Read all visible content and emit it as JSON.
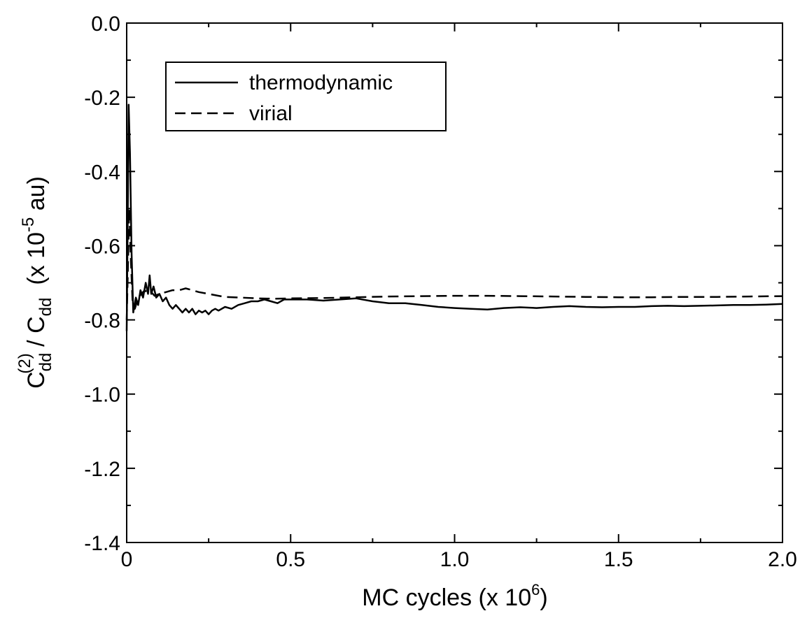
{
  "chart_data": {
    "type": "line",
    "xlabel": {
      "main": "MC cycles (x 10",
      "exponent": "6",
      "close": ")"
    },
    "ylabel": {
      "c1": "C",
      "c1_sub": "dd",
      "c1_sup": "(2)",
      "slash": " / ",
      "c2": "C",
      "c2_sub": "dd",
      "scale_open": "(x 10",
      "scale_exponent": "-5",
      "scale_close": " au)"
    },
    "xlim": [
      0,
      2.0
    ],
    "ylim": [
      -1.4,
      0.0
    ],
    "x_ticks": [
      0,
      0.5,
      1.0,
      1.5,
      2.0
    ],
    "x_tick_labels": [
      "0",
      "0.5",
      "1.0",
      "1.5",
      "2.0"
    ],
    "y_ticks": [
      0.0,
      -0.2,
      -0.4,
      -0.6,
      -0.8,
      -1.0,
      -1.2,
      -1.4
    ],
    "y_tick_labels": [
      "0.0",
      "-0.2",
      "-0.4",
      "-0.6",
      "-0.8",
      "-1.0",
      "-1.2",
      "-1.4"
    ],
    "grid": false,
    "legend": {
      "position": "top-left",
      "entries": [
        "thermodynamic",
        "virial"
      ]
    },
    "series": [
      {
        "name": "thermodynamic",
        "style": "solid",
        "color": "#000000",
        "points": [
          [
            0.0,
            -0.83
          ],
          [
            0.003,
            -0.55
          ],
          [
            0.006,
            -0.22
          ],
          [
            0.01,
            -0.35
          ],
          [
            0.015,
            -0.62
          ],
          [
            0.02,
            -0.78
          ],
          [
            0.028,
            -0.74
          ],
          [
            0.035,
            -0.76
          ],
          [
            0.042,
            -0.72
          ],
          [
            0.05,
            -0.74
          ],
          [
            0.058,
            -0.7
          ],
          [
            0.065,
            -0.73
          ],
          [
            0.07,
            -0.68
          ],
          [
            0.075,
            -0.73
          ],
          [
            0.082,
            -0.71
          ],
          [
            0.09,
            -0.74
          ],
          [
            0.1,
            -0.73
          ],
          [
            0.11,
            -0.75
          ],
          [
            0.12,
            -0.74
          ],
          [
            0.13,
            -0.76
          ],
          [
            0.14,
            -0.77
          ],
          [
            0.15,
            -0.76
          ],
          [
            0.16,
            -0.77
          ],
          [
            0.17,
            -0.78
          ],
          [
            0.18,
            -0.77
          ],
          [
            0.19,
            -0.78
          ],
          [
            0.2,
            -0.77
          ],
          [
            0.21,
            -0.785
          ],
          [
            0.22,
            -0.775
          ],
          [
            0.23,
            -0.78
          ],
          [
            0.24,
            -0.775
          ],
          [
            0.25,
            -0.785
          ],
          [
            0.26,
            -0.775
          ],
          [
            0.27,
            -0.77
          ],
          [
            0.28,
            -0.775
          ],
          [
            0.3,
            -0.765
          ],
          [
            0.32,
            -0.77
          ],
          [
            0.34,
            -0.76
          ],
          [
            0.36,
            -0.755
          ],
          [
            0.38,
            -0.75
          ],
          [
            0.4,
            -0.75
          ],
          [
            0.42,
            -0.745
          ],
          [
            0.44,
            -0.75
          ],
          [
            0.46,
            -0.755
          ],
          [
            0.48,
            -0.745
          ],
          [
            0.5,
            -0.745
          ],
          [
            0.55,
            -0.745
          ],
          [
            0.6,
            -0.748
          ],
          [
            0.65,
            -0.745
          ],
          [
            0.7,
            -0.742
          ],
          [
            0.75,
            -0.75
          ],
          [
            0.8,
            -0.755
          ],
          [
            0.85,
            -0.755
          ],
          [
            0.9,
            -0.76
          ],
          [
            0.95,
            -0.765
          ],
          [
            1.0,
            -0.768
          ],
          [
            1.05,
            -0.77
          ],
          [
            1.1,
            -0.772
          ],
          [
            1.15,
            -0.768
          ],
          [
            1.2,
            -0.766
          ],
          [
            1.25,
            -0.768
          ],
          [
            1.3,
            -0.765
          ],
          [
            1.35,
            -0.763
          ],
          [
            1.4,
            -0.765
          ],
          [
            1.45,
            -0.766
          ],
          [
            1.5,
            -0.765
          ],
          [
            1.55,
            -0.765
          ],
          [
            1.6,
            -0.763
          ],
          [
            1.65,
            -0.762
          ],
          [
            1.7,
            -0.763
          ],
          [
            1.75,
            -0.762
          ],
          [
            1.8,
            -0.761
          ],
          [
            1.85,
            -0.76
          ],
          [
            1.9,
            -0.76
          ],
          [
            1.95,
            -0.759
          ],
          [
            2.0,
            -0.757
          ]
        ]
      },
      {
        "name": "virial",
        "style": "dashed",
        "color": "#000000",
        "points": [
          [
            0.0,
            -0.8
          ],
          [
            0.004,
            -0.65
          ],
          [
            0.008,
            -0.5
          ],
          [
            0.012,
            -0.62
          ],
          [
            0.018,
            -0.75
          ],
          [
            0.025,
            -0.77
          ],
          [
            0.035,
            -0.74
          ],
          [
            0.045,
            -0.73
          ],
          [
            0.055,
            -0.72
          ],
          [
            0.065,
            -0.73
          ],
          [
            0.075,
            -0.725
          ],
          [
            0.085,
            -0.735
          ],
          [
            0.1,
            -0.73
          ],
          [
            0.12,
            -0.725
          ],
          [
            0.14,
            -0.72
          ],
          [
            0.16,
            -0.72
          ],
          [
            0.18,
            -0.715
          ],
          [
            0.2,
            -0.72
          ],
          [
            0.22,
            -0.725
          ],
          [
            0.25,
            -0.73
          ],
          [
            0.28,
            -0.735
          ],
          [
            0.3,
            -0.738
          ],
          [
            0.35,
            -0.74
          ],
          [
            0.4,
            -0.742
          ],
          [
            0.45,
            -0.743
          ],
          [
            0.5,
            -0.742
          ],
          [
            0.6,
            -0.741
          ],
          [
            0.7,
            -0.739
          ],
          [
            0.8,
            -0.737
          ],
          [
            0.9,
            -0.736
          ],
          [
            1.0,
            -0.735
          ],
          [
            1.1,
            -0.735
          ],
          [
            1.2,
            -0.736
          ],
          [
            1.3,
            -0.737
          ],
          [
            1.4,
            -0.738
          ],
          [
            1.5,
            -0.739
          ],
          [
            1.6,
            -0.739
          ],
          [
            1.7,
            -0.738
          ],
          [
            1.8,
            -0.738
          ],
          [
            1.9,
            -0.737
          ],
          [
            2.0,
            -0.736
          ]
        ]
      }
    ]
  }
}
